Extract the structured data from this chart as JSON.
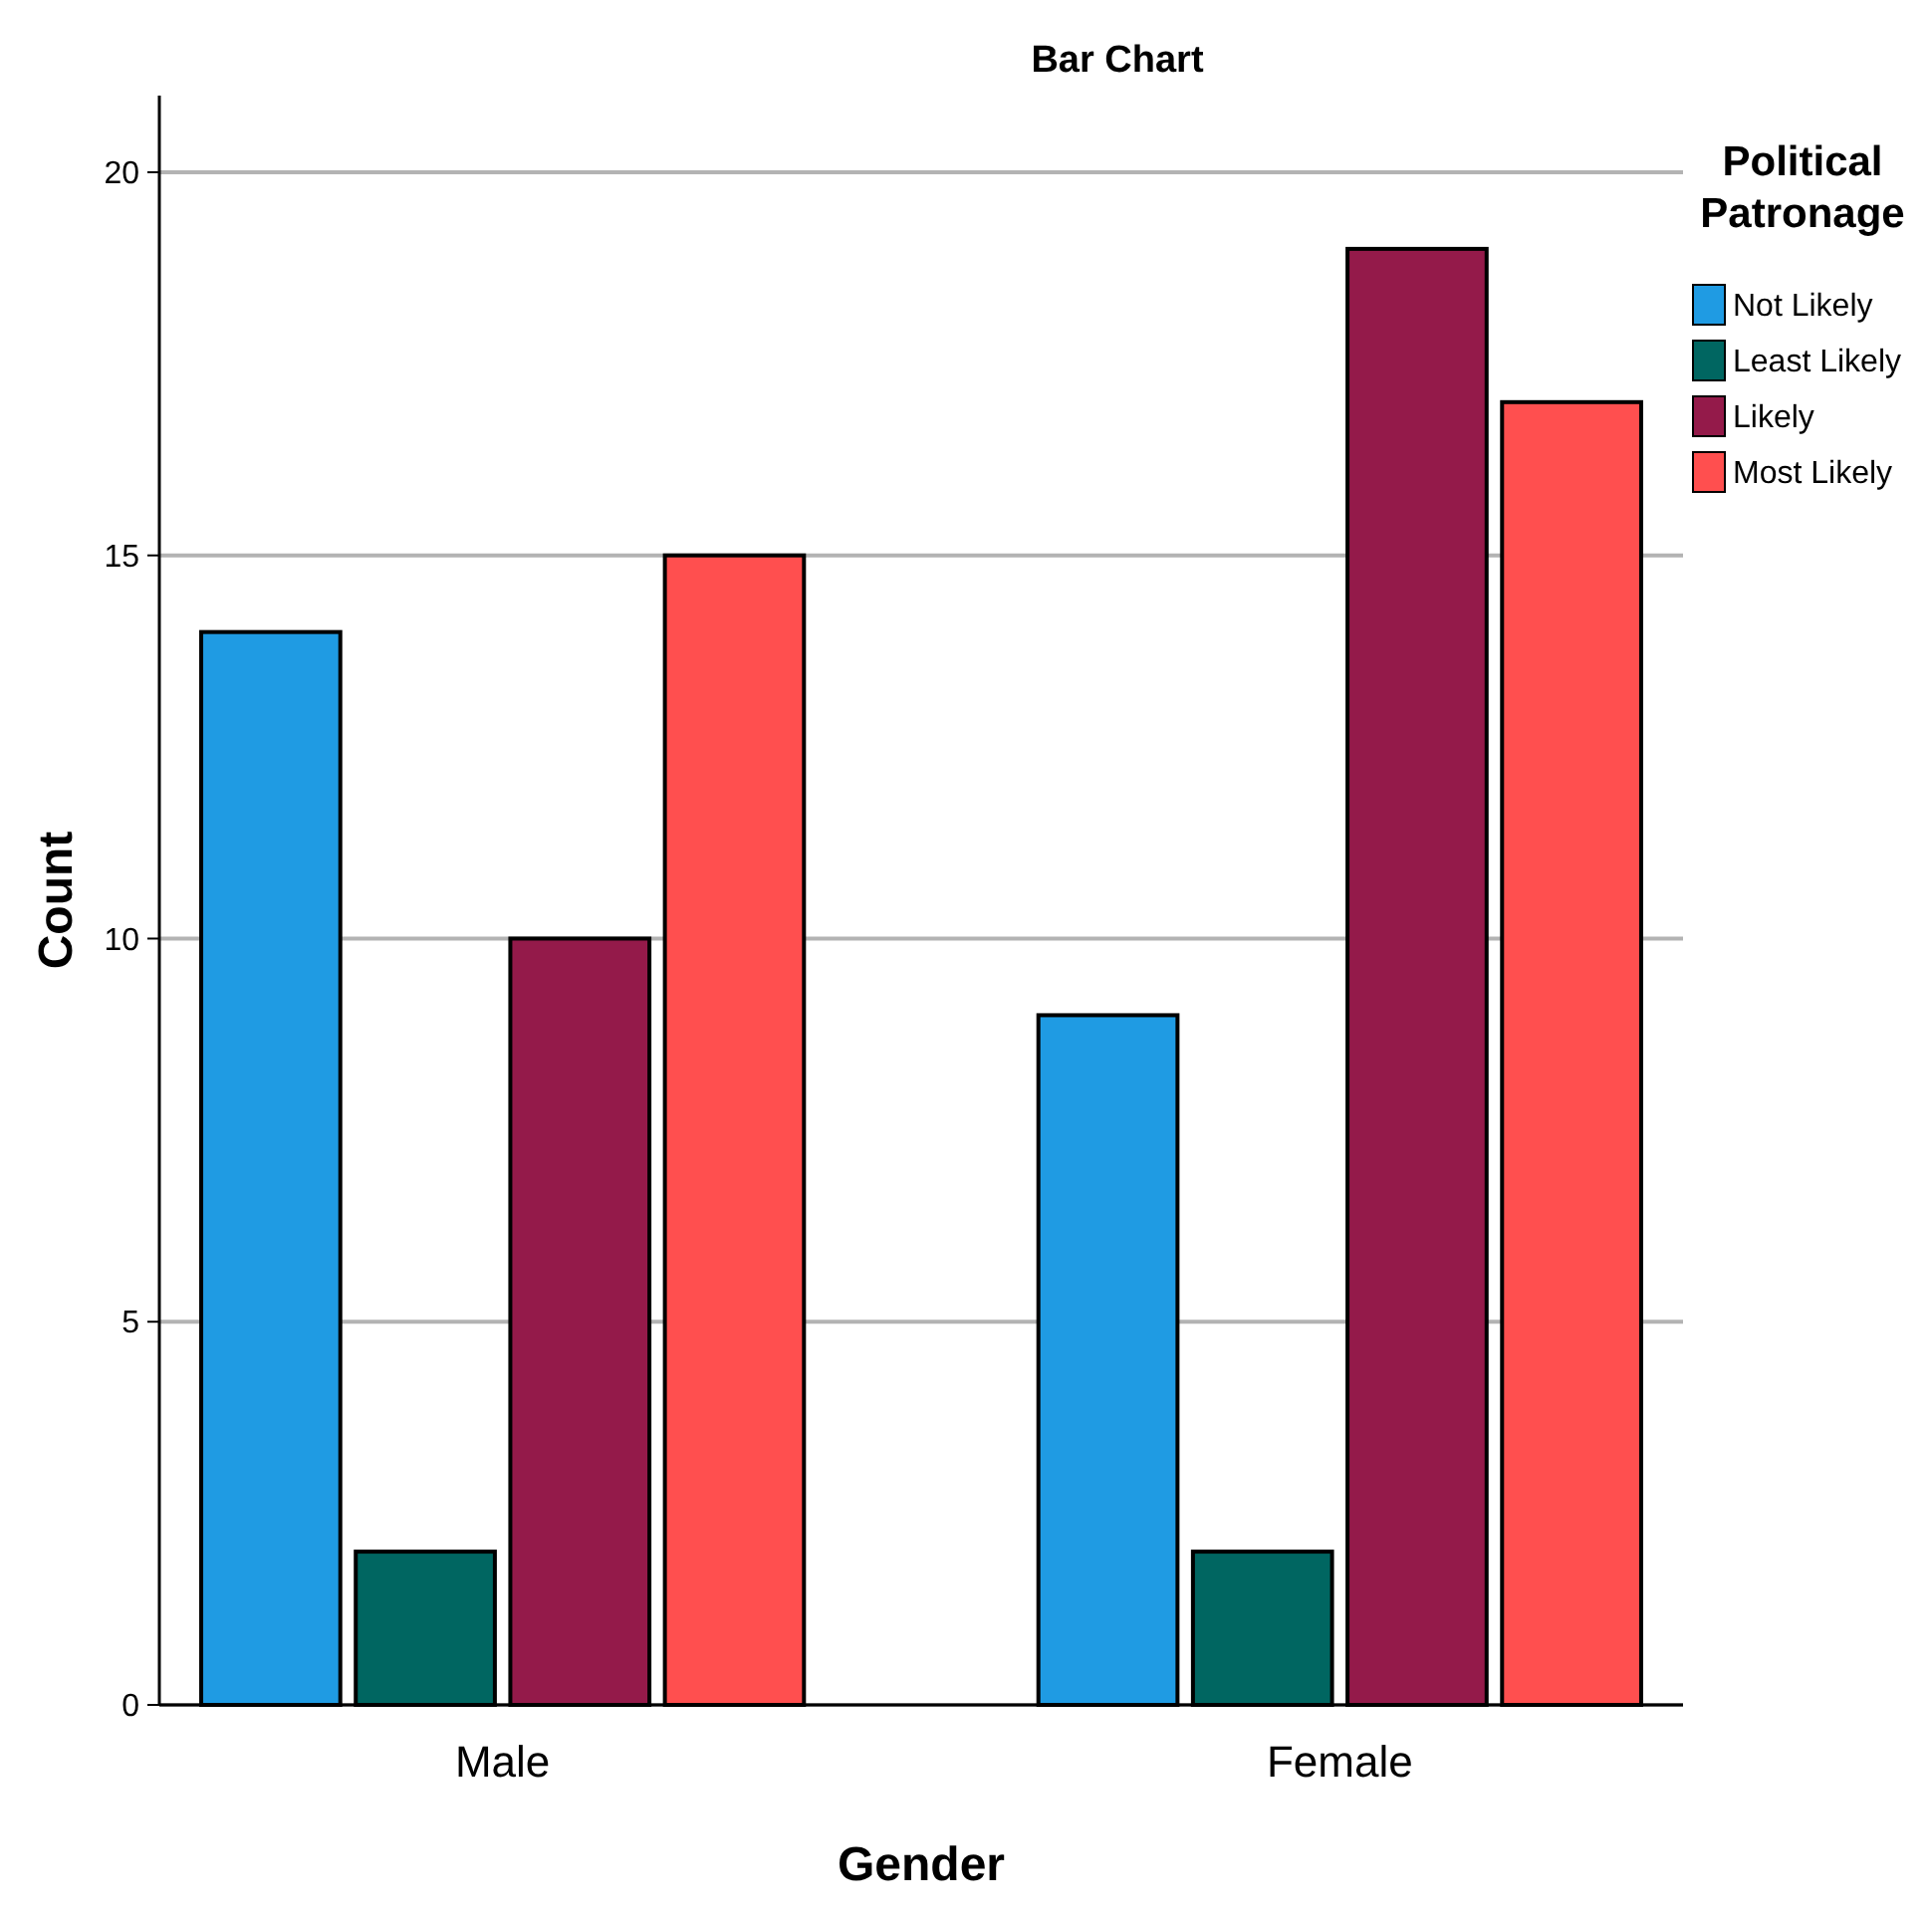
{
  "chart_data": {
    "type": "bar",
    "title": "Bar Chart",
    "xlabel": "Gender",
    "ylabel": "Count",
    "legend_title": "Political Patronage",
    "categories": [
      "Male",
      "Female"
    ],
    "series": [
      {
        "name": "Not Likely",
        "color": "#1f9be3",
        "values": [
          14,
          9
        ]
      },
      {
        "name": "Least Likely",
        "color": "#006661",
        "values": [
          2,
          2
        ]
      },
      {
        "name": "Likely",
        "color": "#941a4a",
        "values": [
          10,
          19
        ]
      },
      {
        "name": "Most Likely",
        "color": "#ff4f4f",
        "values": [
          15,
          17
        ]
      }
    ],
    "ylim": [
      0,
      21
    ],
    "yticks": [
      0,
      5,
      10,
      15,
      20
    ],
    "grid": "y",
    "legend": "top right"
  }
}
